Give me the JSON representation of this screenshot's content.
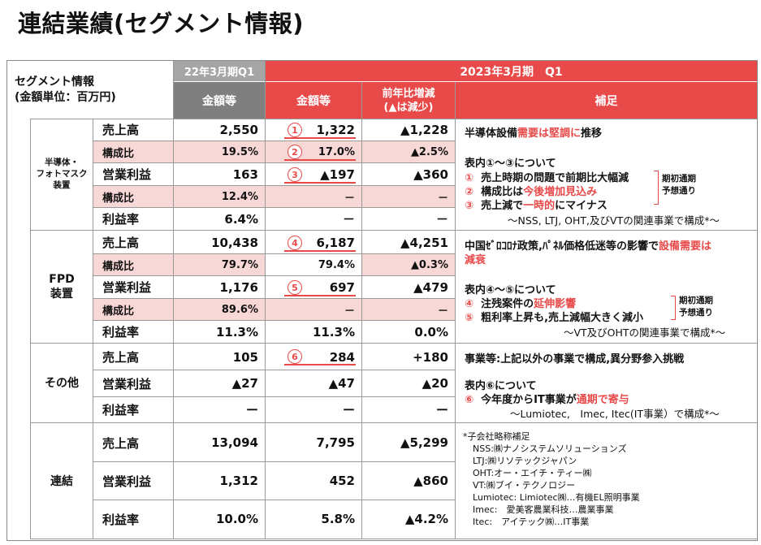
{
  "title": "連結業績(セグメント情報)",
  "corner": {
    "line1": "セグメント情報",
    "line2": "(金額単位：百万円)"
  },
  "headers": {
    "prev_period": "22年3月期Q1",
    "cur_period": "2023年3月期　Q1",
    "amount_prev": "金額等",
    "amount_cur": "金額等",
    "yoy": "前年比増減\n(▲は減少)",
    "yoy_l1": "前年比増減",
    "yoy_l2": "(▲は減少)",
    "note": "補足"
  },
  "segments": [
    {
      "name_l1": "半導体・",
      "name_l2": "フォトマスク",
      "name_l3": "装置",
      "rows": [
        {
          "label": "売上高",
          "prev": "2,550",
          "cur": "1,322",
          "yoy": "▲1,228",
          "marker": "1"
        },
        {
          "label": "構成比",
          "prev": "19.5%",
          "cur": "17.0%",
          "yoy": "▲2.5%",
          "marker": "2"
        },
        {
          "label": "営業利益",
          "prev": "163",
          "cur": "▲197",
          "yoy": "▲360",
          "marker": "3"
        },
        {
          "label": "構成比",
          "prev": "12.4%",
          "cur": "－",
          "yoy": "－",
          "marker": ""
        },
        {
          "label": "利益率",
          "prev": "6.4%",
          "cur": "－",
          "yoy": "－",
          "marker": ""
        }
      ],
      "notes": {
        "l1a": "半導体設備",
        "l1b": "需要は堅調に",
        "l1c": "推移",
        "l2": "表内①～③について",
        "i1n": "①",
        "i1": "売上時期の問題で前期比大幅減",
        "i2n": "②",
        "i2a": "構成比は",
        "i2b": "今後増加見込み",
        "i3n": "③",
        "i3a": "売上減で",
        "i3b": "一時的",
        "i3c": "にマイナス",
        "brace_l1": "期初通期",
        "brace_l2": "予想通り",
        "footer": "～NSS, LTJ, OHT,及びVTの関連事業で構成*～"
      }
    },
    {
      "name_l1": "FPD",
      "name_l2": "装置",
      "rows": [
        {
          "label": "売上高",
          "prev": "10,438",
          "cur": "6,187",
          "yoy": "▲4,251",
          "marker": "4"
        },
        {
          "label": "構成比",
          "prev": "79.7%",
          "cur": "79.4%",
          "yoy": "▲0.3%",
          "marker": ""
        },
        {
          "label": "営業利益",
          "prev": "1,176",
          "cur": "697",
          "yoy": "▲479",
          "marker": "5"
        },
        {
          "label": "構成比",
          "prev": "89.6%",
          "cur": "－",
          "yoy": "－",
          "marker": ""
        },
        {
          "label": "利益率",
          "prev": "11.3%",
          "cur": "11.3%",
          "yoy": "0.0%",
          "marker": ""
        }
      ],
      "notes": {
        "l1a": "中国ｾﾞﾛｺﾛﾅ政策,ﾊﾟﾈﾙ価格低迷等の影響で",
        "l1b": "設備需要は",
        "l1c": "減衰",
        "l2": "表内④～⑤について",
        "i4n": "④",
        "i4a": "注残案件の",
        "i4b": "延伸影響",
        "i5n": "⑤",
        "i5": "粗利率上昇も,売上減幅大きく減小",
        "brace_l1": "期初通期",
        "brace_l2": "予想通り",
        "footer": "～VT及びOHTの関連事業で構成*～"
      }
    },
    {
      "name_l1": "その他",
      "rows": [
        {
          "label": "売上高",
          "prev": "105",
          "cur": "284",
          "yoy": "+180",
          "marker": "6"
        },
        {
          "label": "営業利益",
          "prev": "▲27",
          "cur": "▲47",
          "yoy": "▲20",
          "marker": ""
        },
        {
          "label": "利益率",
          "prev": "ー",
          "cur": "ー",
          "yoy": "ー",
          "marker": ""
        }
      ],
      "notes": {
        "l1": "事業等:上記以外の事業で構成,異分野参入挑戦",
        "l2": "表内⑥について",
        "i6n": "⑥",
        "i6a": "今年度からIT事業が",
        "i6b": "通期で寄与",
        "footer": "～Lumiotec,　Imec, Itec(IT事業）で構成*～"
      }
    },
    {
      "name_l1": "連結",
      "rows": [
        {
          "label": "売上高",
          "prev": "13,094",
          "cur": "7,795",
          "yoy": "▲5,299",
          "marker": ""
        },
        {
          "label": "営業利益",
          "prev": "1,312",
          "cur": "452",
          "yoy": "▲860",
          "marker": ""
        },
        {
          "label": "利益率",
          "prev": "10.0%",
          "cur": "5.8%",
          "yoy": "▲4.2%",
          "marker": ""
        }
      ],
      "notes": {
        "abbr": [
          "*子会社略称補足",
          "NSS:㈱ナノシステムソリューションズ",
          "LTJ:㈱リソテックジャパン",
          "OHT:オー・エイチ・ティー㈱",
          "VT:㈱ブイ・テクノロジー",
          "Lumiotec: Limiotec㈱…有機EL照明事業",
          "Imec:　愛美客農業科技…農業事業",
          "Itec:　アイテック㈱…IT事業"
        ]
      }
    }
  ],
  "colors": {
    "accent_red": "#e84a4a",
    "pink_row": "#f8d7d7",
    "header_gray": "#a5a5a5",
    "header_dark_gray": "#7f7f7f"
  }
}
